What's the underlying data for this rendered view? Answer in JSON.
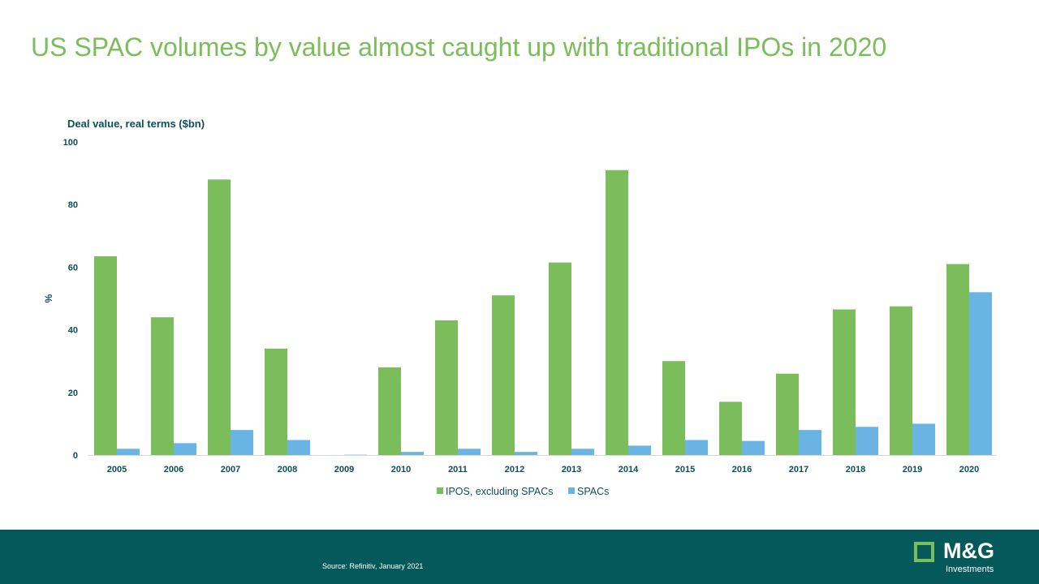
{
  "title": "US SPAC volumes by value almost caught up with traditional IPOs in 2020",
  "footer": {
    "source": "Source: Refinitiv, January 2021",
    "logo_text": "M&G",
    "logo_sub": "Investments"
  },
  "colors": {
    "title": "#7bbd5a",
    "ipo": "#7bbd5a",
    "spac": "#69b4e3",
    "axis_text": "#0c4e55",
    "footer_bg": "#05595b"
  },
  "chart_data": {
    "type": "bar",
    "title": "",
    "ylabel": "%",
    "ylabel_top": "Deal value, real terms ($bn)",
    "ylim": [
      0,
      100
    ],
    "yticks": [
      0,
      20,
      40,
      60,
      80,
      100
    ],
    "categories": [
      "2005",
      "2006",
      "2007",
      "2008",
      "2009",
      "2010",
      "2011",
      "2012",
      "2013",
      "2014",
      "2015",
      "2016",
      "2017",
      "2018",
      "2019",
      "2020"
    ],
    "series": [
      {
        "name": "IPOS, excluding SPACs",
        "values": [
          63.5,
          44,
          88,
          34,
          0,
          28,
          43,
          51,
          61.5,
          91,
          30,
          17,
          26,
          46.5,
          47.5,
          61
        ]
      },
      {
        "name": "SPACs",
        "values": [
          2,
          3.8,
          8,
          4.8,
          0.1,
          1,
          2,
          1,
          2,
          3,
          4.8,
          4.5,
          8,
          9,
          10,
          52
        ]
      }
    ],
    "grid": false,
    "legend": "bottom"
  }
}
